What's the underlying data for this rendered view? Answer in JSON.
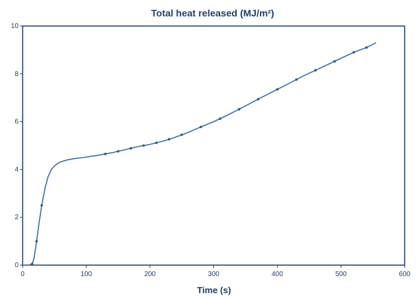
{
  "chart_data": {
    "type": "line",
    "title": "Total heat released (MJ/m²)",
    "xlabel": "Time (s)",
    "ylabel": "",
    "xlim": [
      0,
      600
    ],
    "ylim": [
      0,
      10
    ],
    "x_ticks": [
      0,
      100,
      200,
      300,
      400,
      500,
      600
    ],
    "y_ticks": [
      0,
      2,
      4,
      6,
      8,
      10
    ],
    "grid": false,
    "colors": {
      "line": "#3a6ea5",
      "marker": "#2c5a8a",
      "axis": "#1f3f6b"
    },
    "series": [
      {
        "x": [
          0,
          10,
          15,
          18,
          22,
          26,
          30,
          35,
          40,
          45,
          50,
          55,
          60,
          70,
          80,
          100,
          120,
          140,
          160,
          180,
          200,
          220,
          240,
          260,
          280,
          300,
          320,
          340,
          360,
          380,
          400,
          420,
          440,
          460,
          480,
          500,
          520,
          540,
          555
        ],
        "y": [
          0,
          0,
          0.05,
          0.3,
          1.0,
          1.8,
          2.5,
          3.2,
          3.7,
          4.0,
          4.15,
          4.25,
          4.32,
          4.4,
          4.45,
          4.52,
          4.6,
          4.7,
          4.82,
          4.95,
          5.05,
          5.18,
          5.35,
          5.55,
          5.78,
          6.0,
          6.25,
          6.52,
          6.8,
          7.08,
          7.35,
          7.62,
          7.9,
          8.15,
          8.4,
          8.65,
          8.9,
          9.1,
          9.3
        ]
      }
    ],
    "markers_x": [
      15,
      22,
      30,
      130,
      150,
      170,
      190,
      210,
      230,
      250,
      280,
      310,
      340,
      370,
      400,
      430,
      460,
      490,
      520,
      540
    ]
  }
}
